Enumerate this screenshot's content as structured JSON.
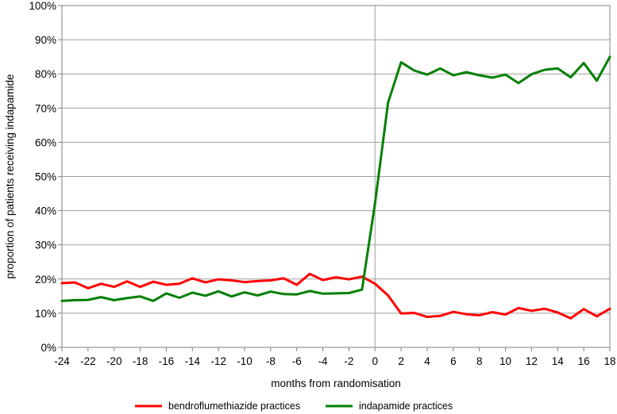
{
  "chart_data": {
    "type": "line",
    "title": "",
    "xlabel": "months from randomisation",
    "ylabel": "proportion of patients receiving indapamide",
    "xlim": [
      -24,
      18
    ],
    "ylim": [
      0,
      100
    ],
    "x_ticks": [
      -24,
      -22,
      -20,
      -18,
      -16,
      -14,
      -12,
      -10,
      -8,
      -6,
      -4,
      -2,
      0,
      2,
      4,
      6,
      8,
      10,
      12,
      14,
      16,
      18
    ],
    "x_tick_labels": [
      "-24",
      "-22",
      "-20",
      "-18",
      "-16",
      "-14",
      "-12",
      "-10",
      "-8",
      "-6",
      "-4",
      "-2",
      "0",
      "2",
      "4",
      "6",
      "8",
      "10",
      "12",
      "14",
      "16",
      "18"
    ],
    "y_ticks": [
      0,
      10,
      20,
      30,
      40,
      50,
      60,
      70,
      80,
      90,
      100
    ],
    "y_tick_labels": [
      "0%",
      "10%",
      "20%",
      "30%",
      "40%",
      "50%",
      "60%",
      "70%",
      "80%",
      "90%",
      "100%"
    ],
    "grid": "horizontal",
    "reference_line_x": 0,
    "legend_position": "bottom",
    "x": [
      -24,
      -23,
      -22,
      -21,
      -20,
      -19,
      -18,
      -17,
      -16,
      -15,
      -14,
      -13,
      -12,
      -11,
      -10,
      -9,
      -8,
      -7,
      -6,
      -5,
      -4,
      -3,
      -2,
      -1,
      0,
      1,
      2,
      3,
      4,
      5,
      6,
      7,
      8,
      9,
      10,
      11,
      12,
      13,
      14,
      15,
      16,
      17,
      18
    ],
    "series": [
      {
        "name": "bendroflumethiazide practices",
        "color": "#ff0000",
        "values": [
          18.8,
          19.0,
          17.3,
          18.6,
          17.7,
          19.3,
          17.7,
          19.2,
          18.3,
          18.6,
          20.2,
          19.0,
          19.9,
          19.6,
          19.1,
          19.4,
          19.6,
          20.2,
          18.3,
          21.5,
          19.7,
          20.5,
          19.9,
          20.7,
          18.6,
          15.2,
          9.9,
          10.1,
          8.9,
          9.2,
          10.4,
          9.7,
          9.4,
          10.3,
          9.6,
          11.5,
          10.7,
          11.3,
          10.2,
          8.5,
          11.2,
          9.1,
          11.3
        ]
      },
      {
        "name": "indapamide practices",
        "color": "#008000",
        "values": [
          13.6,
          13.8,
          13.9,
          14.7,
          13.8,
          14.4,
          14.9,
          13.6,
          15.8,
          14.5,
          16.0,
          15.1,
          16.4,
          14.9,
          16.1,
          15.2,
          16.3,
          15.6,
          15.5,
          16.5,
          15.7,
          15.8,
          15.9,
          16.9,
          42.2,
          71.6,
          83.4,
          81.0,
          79.8,
          81.6,
          79.6,
          80.5,
          79.6,
          78.9,
          79.8,
          77.3,
          79.9,
          81.2,
          81.6,
          79.0,
          83.2,
          78.0,
          85.0
        ]
      }
    ]
  }
}
